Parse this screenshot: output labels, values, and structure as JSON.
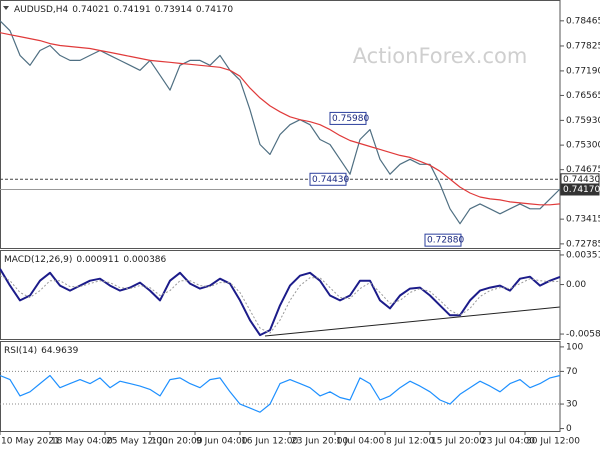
{
  "chart_data": [
    {
      "type": "line",
      "title": "AUDUSD,H4",
      "header_values": [
        "0.74021",
        "0.74191",
        "0.73914",
        "0.74170"
      ],
      "watermark": "ActionForex.com",
      "x": [
        0,
        1,
        2,
        3,
        4,
        5,
        6,
        7,
        8,
        9,
        10,
        11,
        12,
        13,
        14,
        15,
        16,
        17,
        18,
        19,
        20,
        21,
        22,
        23,
        24,
        25,
        26,
        27,
        28,
        29,
        30,
        31,
        32,
        33,
        34,
        35,
        36,
        37,
        38,
        39,
        40,
        41,
        42,
        43,
        44,
        45,
        46,
        47,
        48,
        49,
        50,
        51,
        52,
        53,
        54,
        55,
        56
      ],
      "xlim": [
        0,
        56
      ],
      "ylim": [
        0.7268,
        0.7897
      ],
      "yticks": [
        0.72785,
        0.73415,
        0.74675,
        {
          "value": 0.753,
          "label": "0.75300"
        },
        {
          "value": 0.7593,
          "label": "0.75930"
        },
        0.76565,
        {
          "value": 0.7719,
          "label": "0.77190"
        },
        0.77825,
        0.78465
      ],
      "series": [
        {
          "color": "#4f6f82",
          "values": [
            0.78466,
            0.78214,
            0.77584,
            0.77332,
            0.7771,
            0.77836,
            0.77584,
            0.77458,
            0.77458,
            0.77584,
            0.7771,
            0.77584,
            0.77458,
            0.77332,
            0.77206,
            0.77458,
            0.7708,
            0.76702,
            0.77332,
            0.77458,
            0.77458,
            0.77332,
            0.77584,
            0.77206,
            0.76954,
            0.762,
            0.75316,
            0.75064,
            0.75568,
            0.7582,
            0.75946,
            0.7582,
            0.75442,
            0.75316,
            0.74938,
            0.7456,
            0.75442,
            0.75694,
            0.74938,
            0.7456,
            0.74812,
            0.74938,
            0.74812,
            0.74812,
            0.74308,
            0.73678,
            0.733,
            0.73678,
            0.73804,
            0.73678,
            0.73552,
            0.73678,
            0.73804,
            0.73678,
            0.73678,
            0.7393,
            0.74182
          ]
        },
        {
          "color": "#e03a3a",
          "values": [
            0.78164,
            0.78113,
            0.78063,
            0.78012,
            0.77962,
            0.77886,
            0.77836,
            0.77811,
            0.77786,
            0.7776,
            0.7771,
            0.7766,
            0.77609,
            0.77559,
            0.77508,
            0.77458,
            0.77433,
            0.77408,
            0.77382,
            0.77357,
            0.77332,
            0.77307,
            0.77282,
            0.77206,
            0.77055,
            0.76752,
            0.76502,
            0.76299,
            0.76148,
            0.76022,
            0.75946,
            0.75896,
            0.7582,
            0.75694,
            0.75543,
            0.75417,
            0.75341,
            0.75266,
            0.7519,
            0.75114,
            0.75039,
            0.74988,
            0.74887,
            0.74787,
            0.74635,
            0.74434,
            0.74232,
            0.74081,
            0.7398,
            0.7393,
            0.73905,
            0.73854,
            0.73829,
            0.73804,
            0.73779,
            0.73779,
            0.73804
          ]
        }
      ],
      "hlines": [
        {
          "value": 0.7443,
          "label": "0.74430",
          "style": "dashed"
        },
        {
          "value": 0.7417,
          "label": "0.74170",
          "style": "solid"
        }
      ],
      "annotations": [
        {
          "x": 33,
          "value": 0.7598,
          "label": "0.75980"
        },
        {
          "x": 31,
          "value": 0.7443,
          "label": "0.74430"
        },
        {
          "x": 42.5,
          "value": 0.7288,
          "label": "0.72880"
        }
      ]
    },
    {
      "type": "line",
      "title": "MACD(12,26,9)",
      "header_values": [
        "0.000911",
        "0.000386"
      ],
      "x": [
        0,
        1,
        2,
        3,
        4,
        5,
        6,
        7,
        8,
        9,
        10,
        11,
        12,
        13,
        14,
        15,
        16,
        17,
        18,
        19,
        20,
        21,
        22,
        23,
        24,
        25,
        26,
        27,
        28,
        29,
        30,
        31,
        32,
        33,
        34,
        35,
        36,
        37,
        38,
        39,
        40,
        41,
        42,
        43,
        44,
        45,
        46,
        47,
        48,
        49,
        50,
        51,
        52,
        53,
        54,
        55,
        56
      ],
      "xlim": [
        0,
        56
      ],
      "ylim": [
        -0.006469,
        0.003987
      ],
      "yticks": [
        -0.005881,
        {
          "value": 0,
          "label": "0.00"
        },
        0.003517
      ],
      "series": [
        {
          "color": "#1c1c8a",
          "style": "solid",
          "values": [
            0.001872,
            -0.000126,
            -0.001888,
            -0.001301,
            0.000462,
            0.001402,
            -0.000126,
            -0.000713,
            -0.000126,
            0.000462,
            0.000697,
            -0.000126,
            -0.000713,
            -0.000361,
            0.000227,
            -0.000713,
            -0.001888,
            0.000462,
            0.001402,
            0.00011,
            -0.000478,
            -0.000126,
            0.000697,
            0.00011,
            -0.001888,
            -0.004238,
            -0.006001,
            -0.005413,
            -0.002476,
            -0.000126,
            0.00105,
            0.001402,
            0.000462,
            -0.001301,
            -0.001888,
            -0.001301,
            0.000462,
            0.000462,
            -0.001888,
            -0.002828,
            -0.001301,
            -0.000478,
            -0.000361,
            -0.001301,
            -0.002476,
            -0.003651,
            -0.003651,
            -0.001888,
            -0.000713,
            -0.000361,
            -0.000126,
            -0.000713,
            0.000697,
            0.000932,
            -0.000126,
            0.000462,
            0.000911
          ]
        },
        {
          "color": "#9a9a9a",
          "style": "dotted",
          "values": [
            0.00105,
            0.000462,
            -0.000948,
            -0.001536,
            -0.000713,
            0.000462,
            0.000462,
            -0.000243,
            -0.000243,
            0.00011,
            0.000462,
            0.000227,
            -0.000361,
            -0.000478,
            -0.000126,
            -0.000361,
            -0.001301,
            -0.000713,
            0.000462,
            0.000462,
            -0.000126,
            -0.000243,
            0.000227,
            0.000227,
            -0.000948,
            -0.003063,
            -0.005178,
            -0.005766,
            -0.004238,
            -0.001888,
            -0.000126,
            0.000815,
            0.000815,
            -0.000361,
            -0.001536,
            -0.001653,
            -0.000478,
            0.000227,
            -0.000948,
            -0.002241,
            -0.001888,
            -0.000948,
            -0.000478,
            -0.000831,
            -0.001888,
            -0.003063,
            -0.003651,
            -0.002828,
            -0.001418,
            -0.000713,
            -0.000361,
            -0.000478,
            0.00011,
            0.000697,
            0.000462,
            0.000345,
            0.000386
          ]
        }
      ]
    },
    {
      "type": "line",
      "title": "RSI(14)",
      "header_values": [
        "64.9639"
      ],
      "x": [
        0,
        1,
        2,
        3,
        4,
        5,
        6,
        7,
        8,
        9,
        10,
        11,
        12,
        13,
        14,
        15,
        16,
        17,
        18,
        19,
        20,
        21,
        22,
        23,
        24,
        25,
        26,
        27,
        28,
        29,
        30,
        31,
        32,
        33,
        34,
        35,
        36,
        37,
        38,
        39,
        40,
        41,
        42,
        43,
        44,
        45,
        46,
        47,
        48,
        49,
        50,
        51,
        52,
        53,
        54,
        55,
        56
      ],
      "xlim": [
        0,
        56
      ],
      "ylim": [
        -3,
        106
      ],
      "yticks": [
        0,
        30,
        70,
        100
      ],
      "levels": [
        30,
        70
      ],
      "xticks": [
        {
          "value": 0,
          "label": "10 May 2021"
        },
        {
          "value": 5,
          "label": "18 May 04:00"
        },
        {
          "value": 10.5,
          "label": "25 May 12:00"
        },
        {
          "value": 15,
          "label": "1 Jun 20:00"
        },
        {
          "value": 19.5,
          "label": "9 Jun 04:00"
        },
        {
          "value": 24,
          "label": "16 Jun 12:00"
        },
        {
          "value": 29,
          "label": "23 Jun 20:00"
        },
        {
          "value": 33.5,
          "label": "1 Jul 04:00"
        },
        {
          "value": 38.5,
          "label": "8 Jul 12:00"
        },
        {
          "value": 43,
          "label": "15 Jul 20:00"
        },
        {
          "value": 48,
          "label": "23 Jul 04:00"
        },
        {
          "value": 52.5,
          "label": "30 Jul 12:00"
        }
      ],
      "series": [
        {
          "color": "#1e90ff",
          "style": "solid",
          "values": [
            65,
            60,
            40,
            45,
            55,
            65,
            50,
            55,
            60,
            55,
            62,
            50,
            58,
            55,
            52,
            48,
            40,
            60,
            62,
            55,
            50,
            60,
            62,
            45,
            30,
            25,
            20,
            30,
            55,
            60,
            55,
            50,
            40,
            45,
            38,
            35,
            62,
            55,
            35,
            40,
            50,
            58,
            52,
            45,
            35,
            30,
            42,
            50,
            58,
            52,
            45,
            55,
            60,
            50,
            55,
            62,
            64.9639
          ]
        }
      ]
    }
  ]
}
